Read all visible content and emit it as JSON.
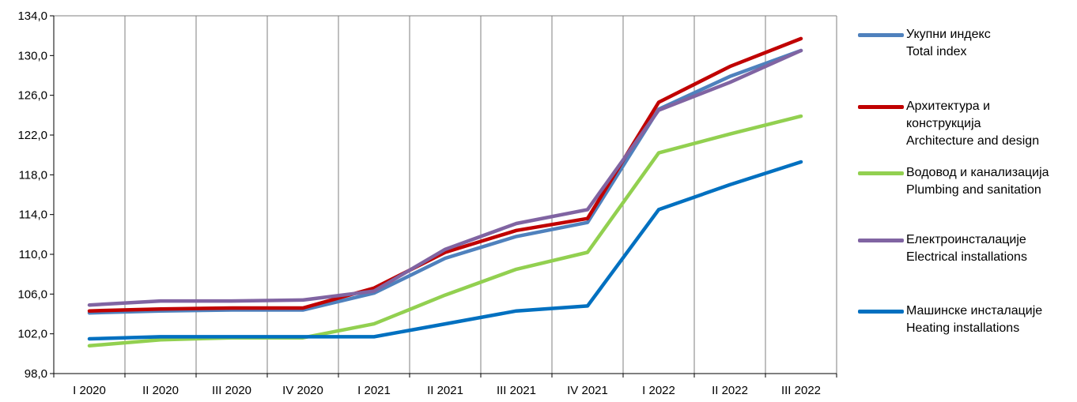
{
  "chart_data": {
    "type": "line",
    "categories": [
      "I 2020",
      "II 2020",
      "III 2020",
      "IV 2020",
      "I 2021",
      "II 2021",
      "III 2021",
      "IV 2021",
      "I 2022",
      "II 2022",
      "III 2022"
    ],
    "ylim": [
      98.0,
      134.0
    ],
    "yticks": [
      "98,0",
      "102,0",
      "106,0",
      "110,0",
      "114,0",
      "118,0",
      "122,0",
      "126,0",
      "130,0",
      "134,0"
    ],
    "grid": "vertical",
    "legend_position": "right",
    "series": [
      {
        "name_lines": [
          "Укупни индекс",
          "Total index"
        ],
        "color": "#4F81BD",
        "values": [
          104.1,
          104.3,
          104.4,
          104.4,
          106.1,
          109.6,
          111.8,
          113.2,
          124.6,
          127.9,
          130.5
        ]
      },
      {
        "name_lines": [
          "Архитектура и",
          "конструкција",
          "Architecture and design"
        ],
        "color": "#C00000",
        "values": [
          104.3,
          104.5,
          104.6,
          104.6,
          106.6,
          110.2,
          112.4,
          113.6,
          125.3,
          128.9,
          131.7
        ]
      },
      {
        "name_lines": [
          "Водовод и канализација",
          "Plumbing and sanitation"
        ],
        "color": "#92D050",
        "values": [
          100.8,
          101.4,
          101.6,
          101.6,
          103.0,
          105.9,
          108.5,
          110.2,
          120.2,
          122.1,
          123.9
        ]
      },
      {
        "name_lines": [
          "Електроинсталације",
          "Electrical installations"
        ],
        "color": "#8064A2",
        "values": [
          104.9,
          105.3,
          105.3,
          105.4,
          106.3,
          110.5,
          113.1,
          114.5,
          124.5,
          127.3,
          130.5
        ]
      },
      {
        "name_lines": [
          "Машинске инсталације",
          "Heating installations"
        ],
        "color": "#0070C0",
        "values": [
          101.5,
          101.7,
          101.7,
          101.7,
          101.7,
          103.0,
          104.3,
          104.8,
          114.5,
          117.0,
          119.3
        ]
      }
    ]
  }
}
